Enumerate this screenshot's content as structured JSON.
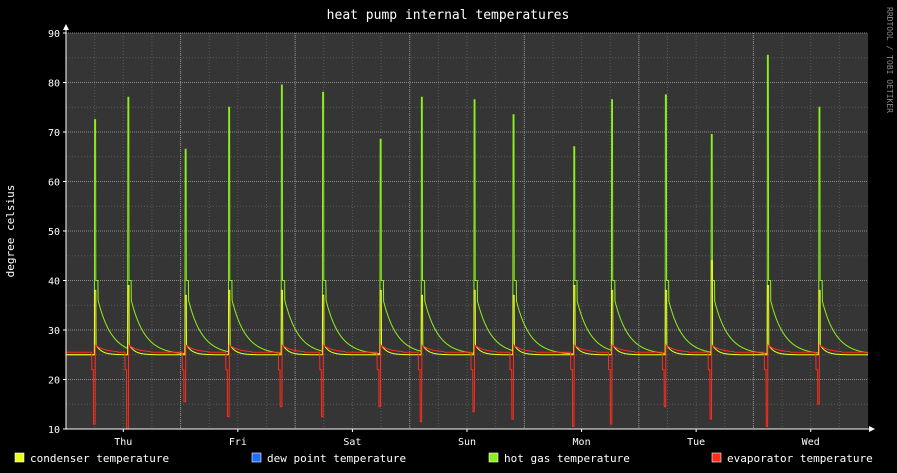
{
  "chart_data": {
    "type": "line",
    "title": "heat pump internal temperatures",
    "ylabel": "degree celsius",
    "watermark": "RRDTOOL / TOBI OETIKER",
    "ylim": [
      10,
      90
    ],
    "yticks": [
      10,
      20,
      30,
      40,
      50,
      60,
      70,
      80,
      90
    ],
    "xlim": [
      -0.5,
      6.5
    ],
    "xticks": [
      {
        "label": "Thu",
        "x": 0
      },
      {
        "label": "Fri",
        "x": 1
      },
      {
        "label": "Sat",
        "x": 2
      },
      {
        "label": "Sun",
        "x": 3
      },
      {
        "label": "Mon",
        "x": 4
      },
      {
        "label": "Tue",
        "x": 5
      },
      {
        "label": "Wed",
        "x": 6
      }
    ],
    "grid": true,
    "legend_position": "bottom",
    "background_color": "#353535",
    "series": [
      {
        "name": "condenser temperature",
        "color": "#e8ff1e",
        "baseline": 25,
        "spike_x": [
          -0.25,
          0.04,
          0.54,
          0.92,
          1.38,
          1.74,
          2.24,
          2.6,
          3.06,
          3.4,
          3.93,
          4.26,
          4.73,
          5.13,
          5.62,
          6.07
        ],
        "spike_y": [
          38,
          39,
          37,
          38,
          38,
          37,
          38,
          37,
          38,
          37,
          39,
          38,
          38,
          44,
          39,
          38
        ]
      },
      {
        "name": "dew point temperature",
        "color": "#1e6fff"
      },
      {
        "name": "hot gas temperature",
        "color": "#8cf01e",
        "baseline": 25,
        "spike_x": [
          -0.25,
          0.04,
          0.54,
          0.92,
          1.38,
          1.74,
          2.24,
          2.6,
          3.06,
          3.4,
          3.93,
          4.26,
          4.73,
          5.13,
          5.62,
          6.07
        ],
        "spike_y": [
          72.5,
          77,
          66.5,
          75,
          79.5,
          78,
          68.5,
          77,
          76.5,
          73.5,
          67,
          76.5,
          77.5,
          69.5,
          85.5,
          75
        ]
      },
      {
        "name": "evaporator temperature",
        "color": "#ff2d1e",
        "baseline": 25.5,
        "dip_x": [
          -0.25,
          0.04,
          0.54,
          0.92,
          1.38,
          1.74,
          2.24,
          2.6,
          3.06,
          3.4,
          3.93,
          4.26,
          4.73,
          5.13,
          5.62,
          6.07
        ],
        "dip_y": [
          11,
          10,
          15.5,
          12.5,
          14.5,
          12.5,
          14.5,
          11.5,
          13.5,
          12,
          10.5,
          11,
          14.5,
          12,
          10.5,
          15
        ]
      }
    ]
  }
}
